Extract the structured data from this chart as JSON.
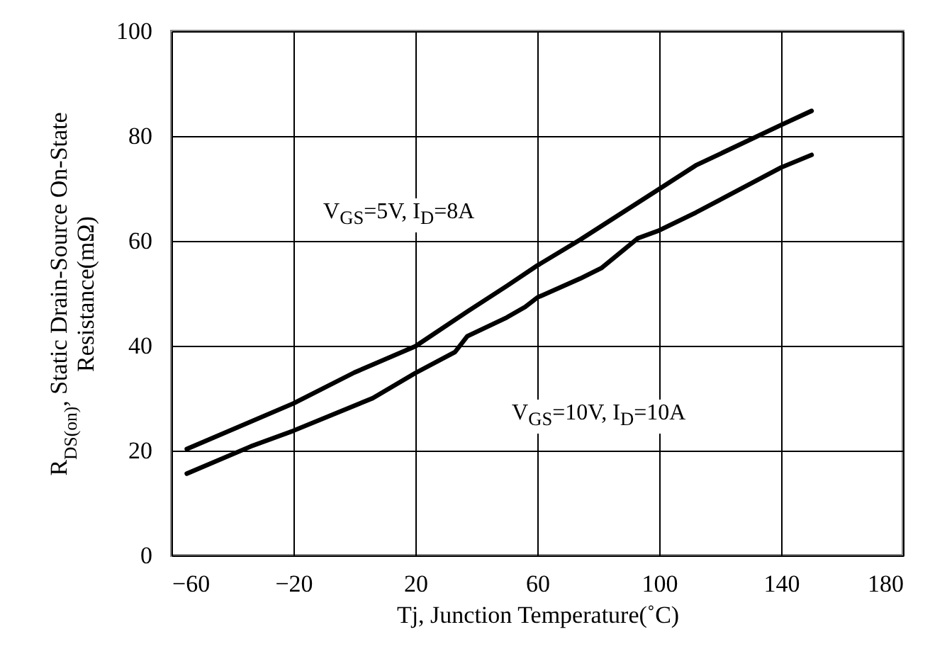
{
  "chart_data": {
    "type": "line",
    "xlabel": "Tj, Junction Temperature(˚C)",
    "ylabel": "R$_{DS(on)}$, Static Drain-Source On-State\nResistance(mΩ)",
    "xlim": [
      -60,
      180
    ],
    "xticks": [
      -60,
      -20,
      20,
      60,
      100,
      140,
      180
    ],
    "ylim": [
      0,
      100
    ],
    "yticks": [
      0,
      20,
      40,
      60,
      80,
      100
    ],
    "grid": true,
    "line_style": "solid",
    "series": [
      {
        "color": "#000000",
        "x": [
          -55,
          -20,
          0,
          20,
          37,
          50,
          60,
          74,
          100,
          112,
          140,
          150
        ],
        "values": [
          20.3,
          29,
          34.9,
          39.9,
          46.5,
          51.4,
          55.3,
          60.2,
          69.9,
          74.4,
          82.1,
          84.8
        ]
      },
      {
        "color": "#000000",
        "x": [
          -55,
          -34,
          -20,
          6,
          20,
          33,
          37,
          50,
          56,
          60,
          74,
          81,
          93,
          100,
          112,
          140,
          150
        ],
        "values": [
          15.6,
          20.8,
          23.8,
          30,
          34.8,
          38.8,
          41.8,
          45.4,
          47.4,
          49.2,
          52.8,
          54.8,
          60.5,
          62,
          65.4,
          74,
          76.4
        ]
      }
    ],
    "annotations": [
      "V$_{GS}$=5V, I$_{D}$=8A",
      "V$_{GS}$=10V, I$_{D}$=10A"
    ]
  }
}
